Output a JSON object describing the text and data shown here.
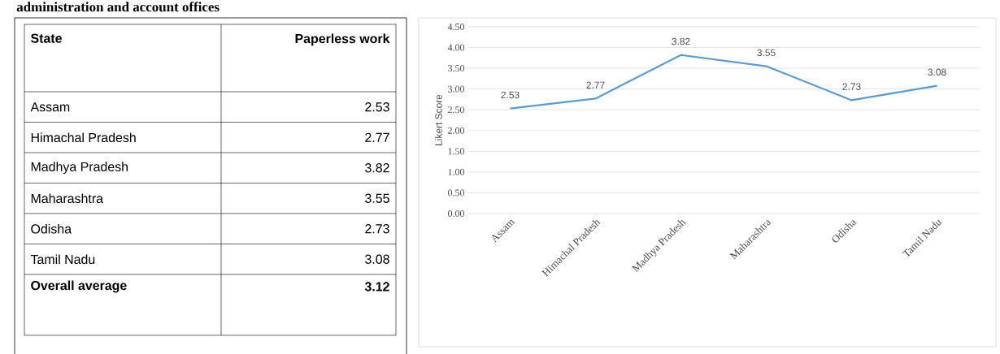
{
  "chart_data": [
    {
      "type": "other",
      "title": "administration and account offices",
      "annotations": [
        "State",
        "Paperless work",
        "Assam",
        "2.53",
        "Himachal Pradesh",
        "2.77",
        "Madhya Pradesh",
        "3.82",
        "Maharashtra",
        "3.55",
        "Odisha",
        "2.73",
        "Tamil Nadu",
        "3.08",
        "Overall average",
        "3.12"
      ]
    },
    {
      "type": "line",
      "ylabel": "Likert Score",
      "categories": [
        "Assam",
        "Himachal Pradesh",
        "Madhya Pradesh",
        "Maharashtra",
        "Odisha",
        "Tamil Nadu"
      ],
      "values": [
        2.53,
        2.77,
        3.82,
        3.55,
        2.73,
        3.08
      ],
      "color": "#5b9bd5",
      "ylim": [
        0,
        4.5
      ],
      "yticks": [
        {
          "value": 0,
          "label": "0.00"
        },
        {
          "value": 0.5,
          "label": "0.50"
        },
        {
          "value": 1,
          "label": "1.00"
        },
        {
          "value": 1.5,
          "label": "1.50"
        },
        {
          "value": 2,
          "label": "2.00"
        },
        {
          "value": 2.5,
          "label": "2.50"
        },
        {
          "value": 3,
          "label": "3.00"
        },
        {
          "value": 3.5,
          "label": "3.50"
        },
        {
          "value": 4,
          "label": "4.00"
        },
        {
          "value": 4.5,
          "label": "4.50"
        }
      ],
      "grid": "y",
      "marker": "none",
      "line_style": "solid",
      "data_labels": true
    }
  ]
}
